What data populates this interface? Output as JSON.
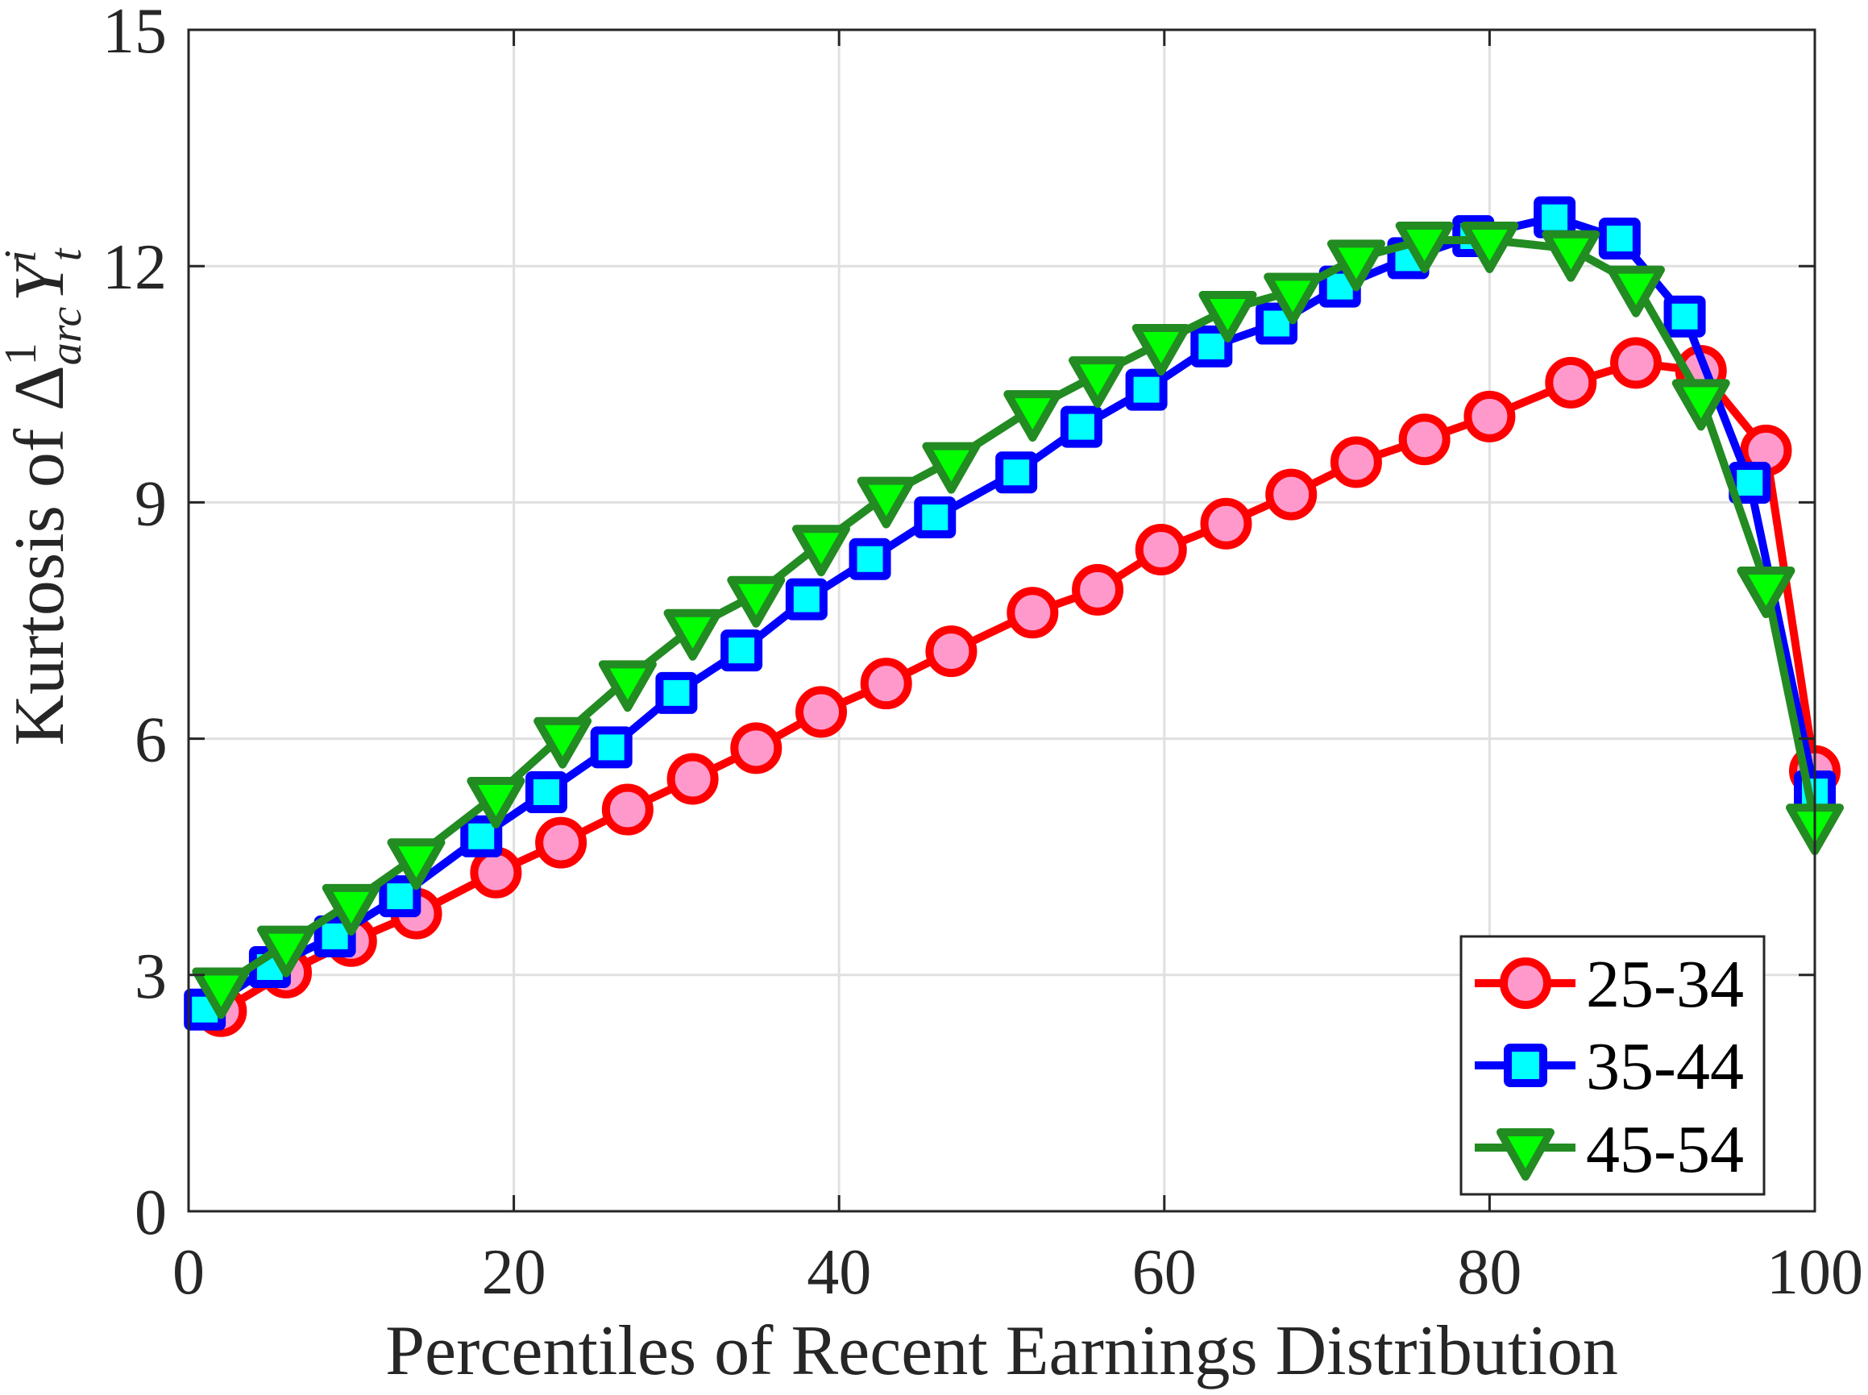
{
  "chart_data": {
    "type": "line",
    "title": "",
    "xlabel": "Percentiles of Recent Earnings Distribution",
    "ylabel": {
      "prefix": "Kurtosis of ",
      "symbol": "Δ",
      "superscript": "1",
      "subscript": "arc",
      "variable": "Y",
      "var_superscript": "i",
      "var_subscript": "t"
    },
    "xlim": [
      0,
      100
    ],
    "ylim": [
      0,
      15
    ],
    "xticks": [
      0,
      20,
      40,
      60,
      80,
      100
    ],
    "yticks": [
      0,
      3,
      6,
      9,
      12,
      15
    ],
    "grid": true,
    "legend_position": "lower right",
    "series": [
      {
        "name": "25-34",
        "line_color": "#FF0000",
        "marker": "circle",
        "marker_fill": "#FF99CC",
        "marker_edge": "#FF0000",
        "x": [
          2,
          6,
          10,
          14,
          18.9,
          22.9,
          27,
          31,
          34.9,
          38.9,
          42.9,
          46.9,
          51.9,
          55.9,
          59.8,
          63.8,
          67.8,
          71.8,
          76,
          80,
          85,
          89,
          93,
          97,
          100
        ],
        "values": [
          2.54,
          3.03,
          3.43,
          3.78,
          4.3,
          4.68,
          5.1,
          5.49,
          5.88,
          6.34,
          6.7,
          7.11,
          7.6,
          7.89,
          8.4,
          8.73,
          9.1,
          9.51,
          9.8,
          10.09,
          10.52,
          10.77,
          10.67,
          9.66,
          5.59
        ]
      },
      {
        "name": "35-44",
        "line_color": "#0000FF",
        "marker": "square",
        "marker_fill": "#00FFFF",
        "marker_edge": "#0000FF",
        "x": [
          1,
          5,
          9,
          13,
          18,
          22,
          26,
          30,
          34,
          38,
          41.9,
          45.9,
          50.9,
          54.9,
          58.9,
          62.9,
          66.9,
          70.8,
          75,
          79,
          84,
          88,
          92,
          96,
          100
        ],
        "values": [
          2.56,
          3.1,
          3.49,
          4.0,
          4.76,
          5.32,
          5.89,
          6.58,
          7.12,
          7.77,
          8.28,
          8.81,
          9.38,
          9.96,
          10.43,
          10.98,
          11.27,
          11.74,
          12.1,
          12.38,
          12.62,
          12.35,
          11.36,
          9.25,
          5.33
        ]
      },
      {
        "name": "45-54",
        "line_color": "#228B22",
        "marker": "triangle-down",
        "marker_fill": "#00FF00",
        "marker_edge": "#228B22",
        "x": [
          2,
          6,
          10,
          14,
          18.9,
          23,
          27,
          31,
          34.9,
          38.9,
          42.9,
          46.9,
          51.9,
          55.9,
          59.8,
          63.9,
          67.9,
          71.8,
          76,
          80,
          85,
          89,
          93,
          97,
          100
        ],
        "values": [
          2.86,
          3.39,
          3.92,
          4.5,
          5.28,
          6.04,
          6.76,
          7.41,
          7.83,
          8.48,
          9.09,
          9.53,
          10.19,
          10.62,
          11.03,
          11.45,
          11.68,
          12.1,
          12.33,
          12.33,
          12.22,
          11.77,
          10.33,
          7.95,
          4.94
        ]
      }
    ]
  },
  "axes": {
    "xlabel": "Percentiles of Recent Earnings Distribution",
    "ylabel_prefix": "Kurtosis of ",
    "ylabel_symbol": "Δ",
    "ylabel_sup": "1",
    "ylabel_sub": "arc",
    "ylabel_var": "Y",
    "ylabel_var_sup": "i",
    "ylabel_var_sub": "t"
  },
  "legend": {
    "items": [
      {
        "label": "25-34"
      },
      {
        "label": "35-44"
      },
      {
        "label": "45-54"
      }
    ]
  }
}
